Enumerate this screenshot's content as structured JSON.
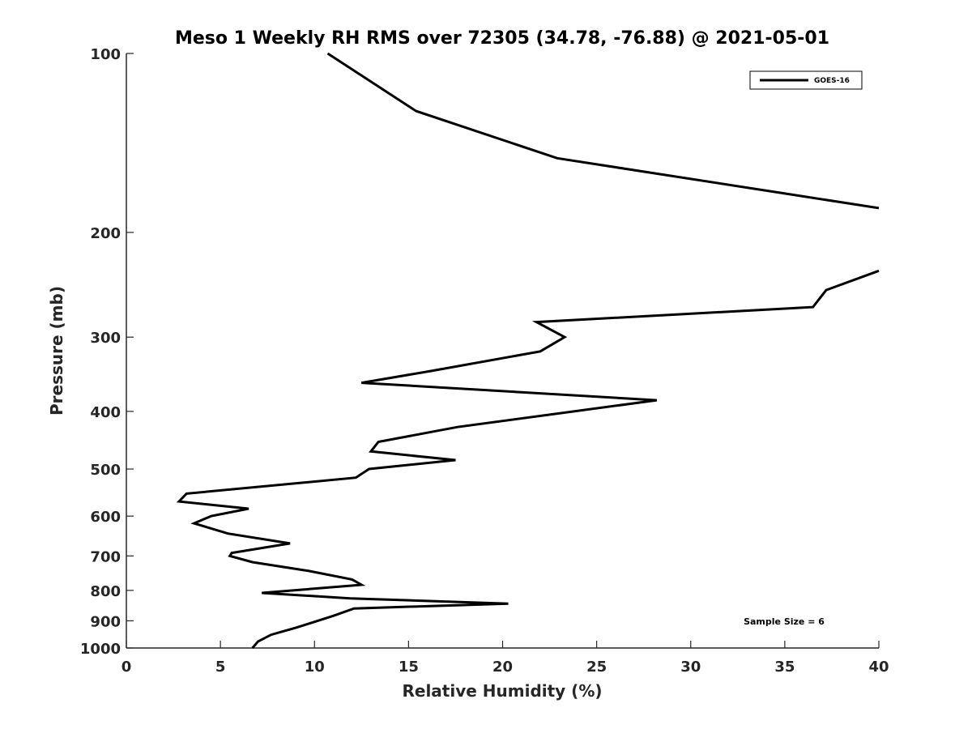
{
  "chart_data": {
    "type": "line",
    "title": "Meso 1 Weekly RH RMS over 72305 (34.78, -76.88) @ 2021-05-01",
    "xlabel": "Relative Humidity (%)",
    "ylabel": "Pressure (mb)",
    "xlim": [
      0,
      40
    ],
    "ylim": [
      1000,
      100
    ],
    "y_scale": "log",
    "x_ticks": [
      0,
      5,
      10,
      15,
      20,
      25,
      30,
      35,
      40
    ],
    "x_tick_labels": [
      "0",
      "5",
      "10",
      "15",
      "20",
      "25",
      "30",
      "35",
      "40"
    ],
    "y_ticks": [
      100,
      200,
      300,
      400,
      500,
      600,
      700,
      800,
      900,
      1000
    ],
    "y_tick_labels": [
      "100",
      "200",
      "300",
      "400",
      "500",
      "600",
      "700",
      "800",
      "900",
      "1000"
    ],
    "grid": false,
    "legend_position": "top-right",
    "annotation": "Sample Size = 6",
    "series": [
      {
        "name": "GOES-16",
        "color": "#000000",
        "segments": [
          [
            [
              10.7,
              100
            ],
            [
              15.4,
              125
            ],
            [
              22.9,
              150
            ],
            [
              35,
              172
            ],
            [
              40,
              182
            ]
          ],
          [
            [
              40,
              232
            ],
            [
              37.2,
              250
            ],
            [
              36.5,
              267
            ],
            [
              21.8,
              283
            ],
            [
              23.3,
              300
            ],
            [
              22,
              317
            ],
            [
              16.2,
              342
            ],
            [
              12.5,
              358
            ],
            [
              28.2,
              383
            ],
            [
              17.6,
              425
            ],
            [
              13.4,
              450
            ],
            [
              13,
              467
            ],
            [
              17.5,
              483
            ],
            [
              12.9,
              500
            ],
            [
              12.2,
              517
            ],
            [
              3.2,
              550
            ],
            [
              2.8,
              567
            ],
            [
              6.5,
              583
            ],
            [
              4.5,
              600
            ],
            [
              3.6,
              617
            ],
            [
              5.4,
              642
            ],
            [
              8.7,
              667
            ],
            [
              5.6,
              692
            ],
            [
              5.5,
              700
            ],
            [
              6.7,
              717
            ],
            [
              9.7,
              742
            ],
            [
              12,
              767
            ],
            [
              12.5,
              783
            ],
            [
              7.2,
              808
            ],
            [
              11.9,
              825
            ],
            [
              20.3,
              842
            ],
            [
              12.1,
              858
            ],
            [
              11,
              883
            ],
            [
              9.8,
              908
            ],
            [
              9,
              925
            ],
            [
              7.7,
              950
            ],
            [
              7,
              975
            ],
            [
              6.7,
              1000
            ]
          ]
        ]
      }
    ]
  }
}
